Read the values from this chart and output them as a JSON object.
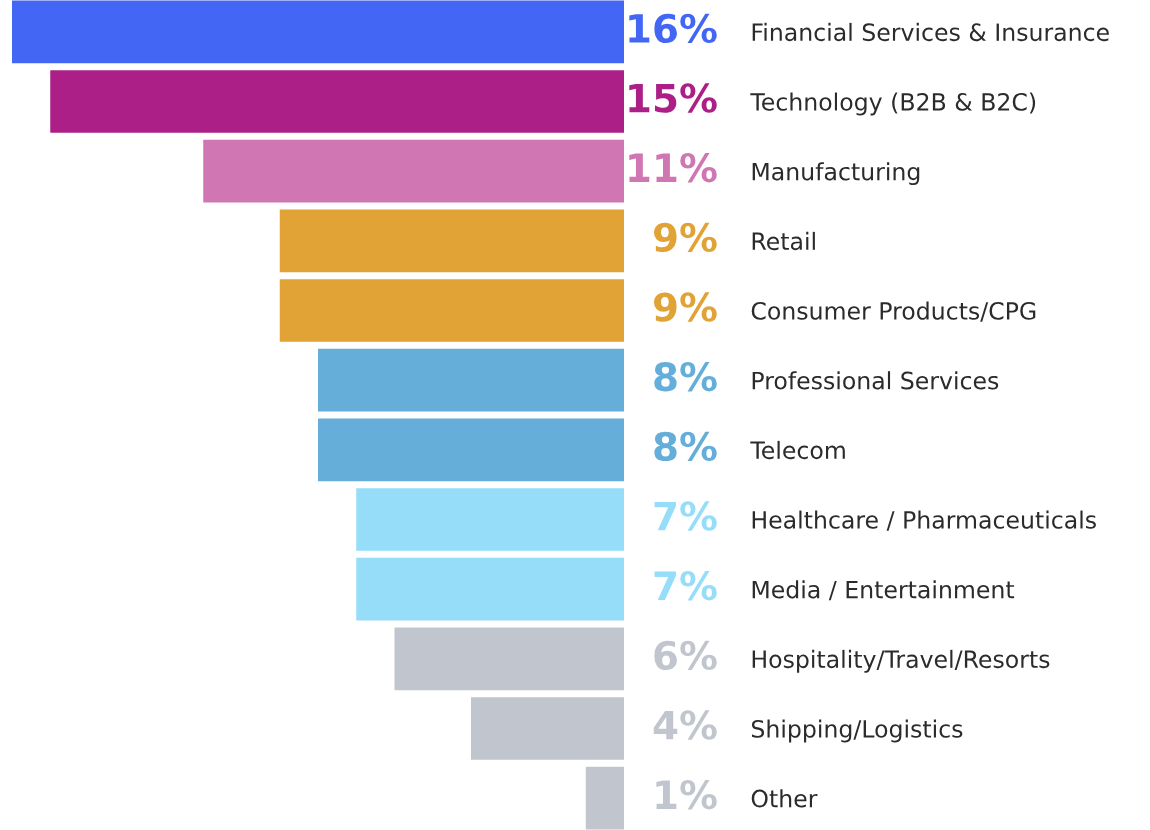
{
  "chart_data": {
    "type": "bar",
    "orientation": "horizontal",
    "categories": [
      "Financial Services & Insurance",
      "Technology (B2B & B2C)",
      "Manufacturing",
      "Retail",
      "Consumer Products/CPG",
      "Professional Services",
      "Telecom",
      "Healthcare / Pharmaceuticals",
      "Media / Entertainment",
      "Hospitality/Travel/Resorts",
      "Shipping/Logistics",
      "Other"
    ],
    "values": [
      16,
      15,
      11,
      9,
      9,
      8,
      8,
      7,
      7,
      6,
      4,
      1
    ],
    "value_labels": [
      "16%",
      "15%",
      "11%",
      "9%",
      "9%",
      "8%",
      "8%",
      "7%",
      "7%",
      "6%",
      "4%",
      "1%"
    ],
    "colors": [
      "#4366f5",
      "#ab1f86",
      "#d076b2",
      "#e2a336",
      "#e2a336",
      "#64aed9",
      "#64aed9",
      "#95ddf9",
      "#95ddf9",
      "#c1c6ce",
      "#c1c6ce",
      "#c1c6ce"
    ],
    "tick_labels": "y",
    "grid": false,
    "legend": false
  }
}
